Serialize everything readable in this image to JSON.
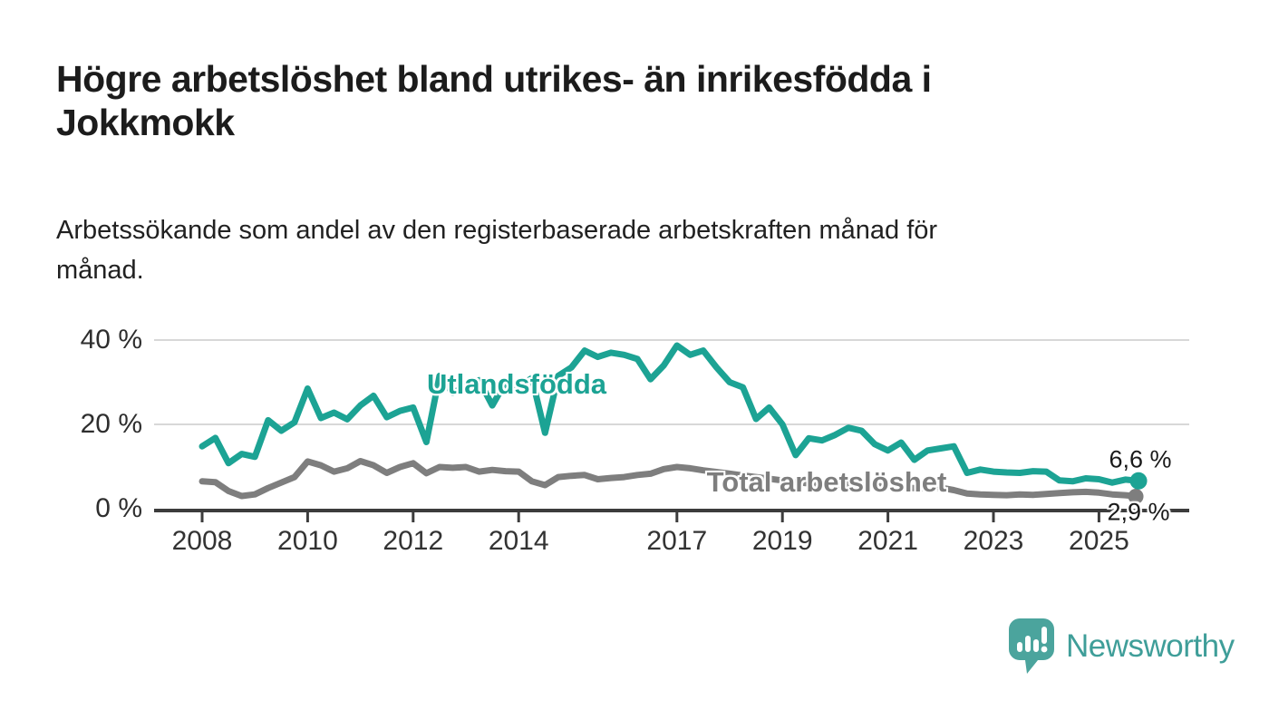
{
  "title": "Högre arbetslöshet bland utrikes- än inrikesfödda i\nJokkmokk",
  "subtitle": "Arbetssökande som andel av den registerbaserade arbetskraften månad för\nmånad.",
  "branding": {
    "name": "Newsworthy",
    "logo_icon": "speech-bubble-bar-chart-icon",
    "icon_color": "#4ba49d",
    "wordmark_color": "#3f9e99"
  },
  "colors": {
    "foreign_born_line": "#1ca394",
    "total_line": "#7e7e7e",
    "axis": "#3c3c3c",
    "gridline": "#d8d8d8",
    "text": "#1c1c1c"
  },
  "chart_data": {
    "type": "line",
    "title": "",
    "xlabel": "",
    "ylabel": "",
    "y_unit": "%",
    "grid": "horizontal-only",
    "legend_position": "inline-labels-on-lines",
    "ylim": [
      0,
      43
    ],
    "xlim": [
      2007.1,
      2026.7
    ],
    "y_ticks": [
      {
        "value": 40,
        "label": "40 %",
        "gridline": true
      },
      {
        "value": 20,
        "label": "20 %",
        "gridline": true
      },
      {
        "value": 0,
        "label": "0 %",
        "gridline": false
      }
    ],
    "x_ticks": [
      {
        "year": 2008,
        "label": "2008"
      },
      {
        "year": 2010,
        "label": "2010"
      },
      {
        "year": 2012,
        "label": "2012"
      },
      {
        "year": 2014,
        "label": "2014"
      },
      {
        "year": 2017,
        "label": "2017"
      },
      {
        "year": 2019,
        "label": "2019"
      },
      {
        "year": 2021,
        "label": "2021"
      },
      {
        "year": 2023,
        "label": "2023"
      },
      {
        "year": 2025,
        "label": "2025"
      }
    ],
    "x": [
      2008,
      2008.25,
      2008.5,
      2008.75,
      2009,
      2009.25,
      2009.5,
      2009.75,
      2010,
      2010.25,
      2010.5,
      2010.75,
      2011,
      2011.25,
      2011.5,
      2011.75,
      2012,
      2012.25,
      2012.5,
      2012.75,
      2013,
      2013.25,
      2013.5,
      2013.75,
      2014,
      2014.25,
      2014.5,
      2014.75,
      2015,
      2015.25,
      2015.5,
      2015.75,
      2016,
      2016.25,
      2016.5,
      2016.75,
      2017,
      2017.25,
      2017.5,
      2017.75,
      2018,
      2018.25,
      2018.5,
      2018.75,
      2019,
      2019.25,
      2019.5,
      2019.75,
      2020,
      2020.25,
      2020.5,
      2020.75,
      2021,
      2021.25,
      2021.5,
      2021.75,
      2022,
      2022.25,
      2022.5,
      2022.75,
      2023,
      2023.25,
      2023.5,
      2023.75,
      2024,
      2024.25,
      2024.5,
      2024.75,
      2025,
      2025.25,
      2025.5,
      2025.75
    ],
    "series": [
      {
        "name": "Utlandsfödda",
        "color": "#1ca394",
        "end_value": 6.6,
        "end_label": "6,6 %",
        "values": [
          14.8,
          16.8,
          10.8,
          13,
          12.3,
          21,
          18.5,
          20.5,
          28.5,
          21.5,
          22.8,
          21.2,
          24.5,
          26.8,
          21.7,
          23.2,
          24,
          15.8,
          31.5,
          27.5,
          29,
          30.5,
          24.5,
          30,
          29,
          31,
          18,
          31.5,
          33.5,
          37.5,
          36,
          37,
          36.5,
          35.5,
          30.7,
          34,
          38.7,
          36.5,
          37.5,
          33.5,
          30,
          28.8,
          21.3,
          24,
          20,
          12.7,
          16.7,
          16.2,
          17.5,
          19.2,
          18.5,
          15.3,
          13.8,
          15.7,
          11.6,
          13.8,
          14.3,
          14.8,
          8.5,
          9.3,
          8.8,
          8.6,
          8.5,
          8.9,
          8.8,
          6.7,
          6.5,
          7.2,
          7,
          6.2,
          6.9,
          6.6
        ]
      },
      {
        "name": "Total arbetslöshet",
        "color": "#7e7e7e",
        "end_value": 2.9,
        "end_label": "2,9 %",
        "values": [
          6.5,
          6.3,
          4.2,
          3,
          3.4,
          4.9,
          6.2,
          7.5,
          11.2,
          10.3,
          8.8,
          9.6,
          11.3,
          10.3,
          8.5,
          9.9,
          10.8,
          8.4,
          9.9,
          9.7,
          9.9,
          8.8,
          9.2,
          8.9,
          8.8,
          6.5,
          5.6,
          7.5,
          7.8,
          8,
          7,
          7.3,
          7.5,
          8,
          8.3,
          9.4,
          9.9,
          9.6,
          9.1,
          8.7,
          8.3,
          7.9,
          7.5,
          7.1,
          6.7,
          6.3,
          6,
          5.8,
          5.7,
          5.9,
          5.7,
          5.4,
          5.2,
          5,
          4.9,
          4.9,
          5,
          4.4,
          3.6,
          3.4,
          3.3,
          3.2,
          3.4,
          3.3,
          3.5,
          3.7,
          3.9,
          4,
          3.8,
          3.4,
          3.2,
          2.9
        ]
      }
    ]
  }
}
